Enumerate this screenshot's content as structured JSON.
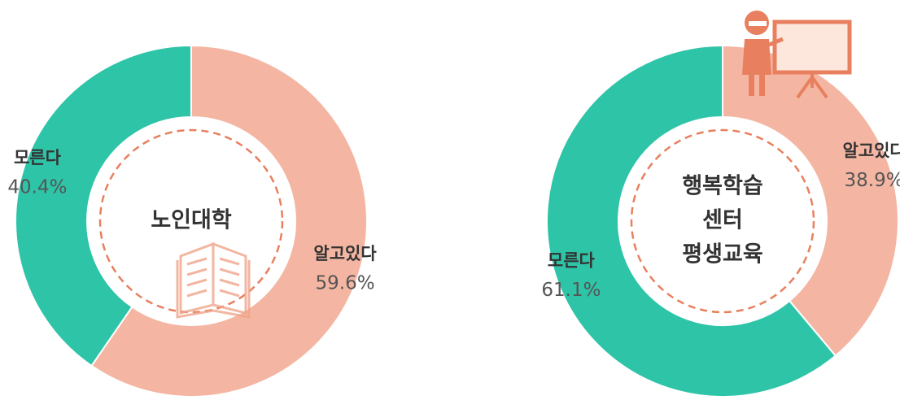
{
  "chart_data": [
    {
      "type": "pie",
      "center_label": [
        "노인대학"
      ],
      "categories": [
        "알고있다",
        "모른다"
      ],
      "values": [
        59.6,
        40.4
      ],
      "value_labels": [
        "59.6%",
        "40.4%"
      ],
      "colors": [
        "#f4b6a2",
        "#2ec4a8"
      ]
    },
    {
      "type": "pie",
      "center_label": [
        "행복학습",
        "센터",
        "평생교육"
      ],
      "categories": [
        "알고있다",
        "모른다"
      ],
      "values": [
        38.9,
        61.1
      ],
      "value_labels": [
        "38.9%",
        "61.1%"
      ],
      "colors": [
        "#f4b6a2",
        "#2ec4a8"
      ]
    }
  ]
}
